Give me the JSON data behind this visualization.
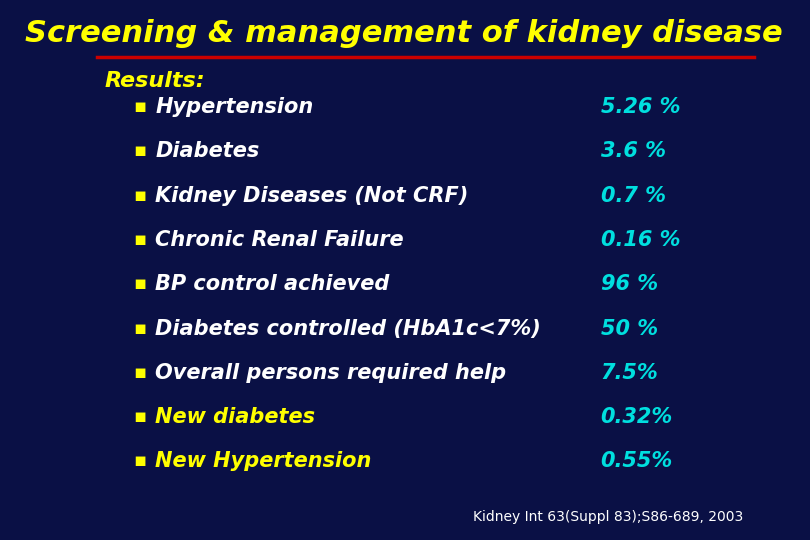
{
  "title": "Screening & management of kidney disease",
  "title_color": "#FFFF00",
  "background_color": "#0a1045",
  "results_label": "Results:",
  "results_color": "#FFFF00",
  "bullet_color": "#FFFF00",
  "items": [
    {
      "label": "Hypertension",
      "value": "5.26 %",
      "label_color": "#FFFFFF",
      "value_color": "#00DFDF"
    },
    {
      "label": "Diabetes",
      "value": "3.6 %",
      "label_color": "#FFFFFF",
      "value_color": "#00DFDF"
    },
    {
      "label": "Kidney Diseases (Not CRF)",
      "value": "0.7 %",
      "label_color": "#FFFFFF",
      "value_color": "#00DFDF"
    },
    {
      "label": "Chronic Renal Failure",
      "value": "0.16 %",
      "label_color": "#FFFFFF",
      "value_color": "#00DFDF"
    },
    {
      "label": "BP control achieved",
      "value": "96 %",
      "label_color": "#FFFFFF",
      "value_color": "#00DFDF"
    },
    {
      "label": "Diabetes controlled (HbA1c<7%)",
      "value": "50 %",
      "label_color": "#FFFFFF",
      "value_color": "#00DFDF"
    },
    {
      "label": "Overall persons required help",
      "value": "7.5%",
      "label_color": "#FFFFFF",
      "value_color": "#00DFDF"
    },
    {
      "label": "New diabetes",
      "value": "0.32%",
      "label_color": "#FFFF00",
      "value_color": "#00DFDF"
    },
    {
      "label": "New Hypertension",
      "value": "0.55%",
      "label_color": "#FFFF00",
      "value_color": "#00DFDF"
    }
  ],
  "citation": "Kidney Int 63(Suppl 83);S86-689, 2003",
  "citation_color": "#FFFFFF",
  "title_line_color": "#CC0000",
  "figsize": [
    8.1,
    5.4
  ],
  "dpi": 100
}
